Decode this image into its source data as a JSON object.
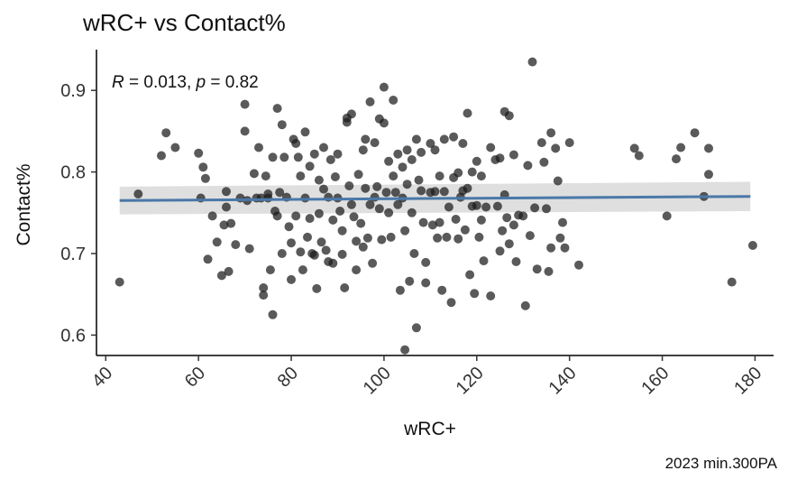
{
  "chart_data": {
    "type": "scatter",
    "title": "wRC+ vs Contact%",
    "xlabel": "wRC+",
    "ylabel": "Contact%",
    "caption": "2023 min.300PA",
    "annotation": {
      "r": "0.013",
      "p": "0.82"
    },
    "xlim": [
      38,
      184
    ],
    "ylim": [
      0.575,
      0.95
    ],
    "x_ticks": [
      40,
      60,
      80,
      100,
      120,
      140,
      160,
      180
    ],
    "y_ticks": [
      0.6,
      0.7,
      0.8,
      0.9
    ],
    "x_tick_labels": [
      "40",
      "60",
      "80",
      "100",
      "120",
      "140",
      "160",
      "180"
    ],
    "y_tick_labels": [
      "0.6",
      "0.7",
      "0.8",
      "0.9"
    ],
    "fit": {
      "x": [
        43,
        179
      ],
      "y": [
        0.765,
        0.77
      ],
      "ci_low": [
        0.748,
        0.752
      ],
      "ci_high": [
        0.782,
        0.788
      ]
    },
    "colors": {
      "points": "#1a1a1a",
      "fit_line": "#4a78a8",
      "ci_band": "#d9d9d9",
      "axis": "#000000"
    },
    "points": [
      [
        43,
        0.665
      ],
      [
        47,
        0.773
      ],
      [
        52,
        0.82
      ],
      [
        53,
        0.848
      ],
      [
        55,
        0.83
      ],
      [
        60,
        0.823
      ],
      [
        60.5,
        0.768
      ],
      [
        61,
        0.806
      ],
      [
        61.5,
        0.792
      ],
      [
        62,
        0.693
      ],
      [
        63,
        0.746
      ],
      [
        64,
        0.714
      ],
      [
        65,
        0.673
      ],
      [
        65.5,
        0.735
      ],
      [
        66,
        0.776
      ],
      [
        66,
        0.757
      ],
      [
        66.5,
        0.678
      ],
      [
        67,
        0.737
      ],
      [
        68,
        0.711
      ],
      [
        69,
        0.768
      ],
      [
        70,
        0.883
      ],
      [
        70,
        0.85
      ],
      [
        70.5,
        0.765
      ],
      [
        71,
        0.706
      ],
      [
        72,
        0.798
      ],
      [
        72.5,
        0.768
      ],
      [
        73,
        0.83
      ],
      [
        73.5,
        0.768
      ],
      [
        74,
        0.658
      ],
      [
        74,
        0.649
      ],
      [
        74.5,
        0.795
      ],
      [
        75,
        0.773
      ],
      [
        75,
        0.768
      ],
      [
        75.5,
        0.68
      ],
      [
        76,
        0.818
      ],
      [
        76,
        0.625
      ],
      [
        76.5,
        0.752
      ],
      [
        77,
        0.746
      ],
      [
        77,
        0.878
      ],
      [
        77.5,
        0.775
      ],
      [
        78,
        0.858
      ],
      [
        78,
        0.7
      ],
      [
        78.5,
        0.818
      ],
      [
        79,
        0.769
      ],
      [
        79.5,
        0.733
      ],
      [
        80,
        0.713
      ],
      [
        80,
        0.668
      ],
      [
        80.5,
        0.84
      ],
      [
        81,
        0.835
      ],
      [
        81,
        0.746
      ],
      [
        81.5,
        0.818
      ],
      [
        82,
        0.795
      ],
      [
        82,
        0.702
      ],
      [
        82.5,
        0.68
      ],
      [
        83,
        0.849
      ],
      [
        83,
        0.768
      ],
      [
        83.5,
        0.72
      ],
      [
        84,
        0.807
      ],
      [
        84,
        0.743
      ],
      [
        84.5,
        0.7
      ],
      [
        85,
        0.822
      ],
      [
        85,
        0.698
      ],
      [
        85.5,
        0.657
      ],
      [
        86,
        0.79
      ],
      [
        86,
        0.749
      ],
      [
        86.5,
        0.714
      ],
      [
        87,
        0.83
      ],
      [
        87,
        0.779
      ],
      [
        87.5,
        0.704
      ],
      [
        88,
        0.769
      ],
      [
        88,
        0.69
      ],
      [
        88.5,
        0.815
      ],
      [
        89,
        0.741
      ],
      [
        89,
        0.688
      ],
      [
        89.5,
        0.794
      ],
      [
        90,
        0.822
      ],
      [
        90,
        0.768
      ],
      [
        90.5,
        0.752
      ],
      [
        91,
        0.728
      ],
      [
        91,
        0.699
      ],
      [
        91.5,
        0.658
      ],
      [
        92,
        0.866
      ],
      [
        92,
        0.861
      ],
      [
        92.5,
        0.783
      ],
      [
        93,
        0.871
      ],
      [
        93,
        0.76
      ],
      [
        93.5,
        0.745
      ],
      [
        94,
        0.715
      ],
      [
        94,
        0.68
      ],
      [
        94.5,
        0.797
      ],
      [
        95,
        0.737
      ],
      [
        95.5,
        0.827
      ],
      [
        95.5,
        0.708
      ],
      [
        96,
        0.84
      ],
      [
        96,
        0.78
      ],
      [
        96.5,
        0.719
      ],
      [
        97,
        0.886
      ],
      [
        97,
        0.76
      ],
      [
        97.5,
        0.688
      ],
      [
        98,
        0.836
      ],
      [
        98,
        0.769
      ],
      [
        98.5,
        0.782
      ],
      [
        99,
        0.865
      ],
      [
        99,
        0.755
      ],
      [
        99.5,
        0.717
      ],
      [
        100,
        0.904
      ],
      [
        100,
        0.86
      ],
      [
        100.5,
        0.775
      ],
      [
        101,
        0.813
      ],
      [
        101,
        0.75
      ],
      [
        101.5,
        0.72
      ],
      [
        102,
        0.888
      ],
      [
        102,
        0.795
      ],
      [
        102.5,
        0.775
      ],
      [
        103,
        0.822
      ],
      [
        103,
        0.76
      ],
      [
        103.5,
        0.655
      ],
      [
        104,
        0.806
      ],
      [
        104,
        0.768
      ],
      [
        104.5,
        0.728
      ],
      [
        104.5,
        0.582
      ],
      [
        105,
        0.827
      ],
      [
        105,
        0.785
      ],
      [
        105.5,
        0.666
      ],
      [
        106,
        0.815
      ],
      [
        106,
        0.75
      ],
      [
        106.5,
        0.7
      ],
      [
        107,
        0.84
      ],
      [
        107,
        0.609
      ],
      [
        107.5,
        0.79
      ],
      [
        108,
        0.824
      ],
      [
        108,
        0.777
      ],
      [
        108.5,
        0.738
      ],
      [
        109,
        0.689
      ],
      [
        109,
        0.664
      ],
      [
        110,
        0.835
      ],
      [
        110,
        0.775
      ],
      [
        110.5,
        0.735
      ],
      [
        111,
        0.827
      ],
      [
        111,
        0.776
      ],
      [
        111.5,
        0.719
      ],
      [
        112,
        0.795
      ],
      [
        112,
        0.738
      ],
      [
        112.5,
        0.655
      ],
      [
        113,
        0.84
      ],
      [
        113,
        0.776
      ],
      [
        113.5,
        0.72
      ],
      [
        114,
        0.757
      ],
      [
        114.5,
        0.64
      ],
      [
        115,
        0.843
      ],
      [
        115,
        0.793
      ],
      [
        115.5,
        0.742
      ],
      [
        116,
        0.799
      ],
      [
        116,
        0.718
      ],
      [
        116.5,
        0.769
      ],
      [
        117,
        0.835
      ],
      [
        117,
        0.777
      ],
      [
        117.5,
        0.729
      ],
      [
        118,
        0.872
      ],
      [
        118,
        0.78
      ],
      [
        118.5,
        0.674
      ],
      [
        119,
        0.8
      ],
      [
        119,
        0.758
      ],
      [
        119.5,
        0.651
      ],
      [
        120,
        0.813
      ],
      [
        120,
        0.759
      ],
      [
        120.5,
        0.72
      ],
      [
        121,
        0.795
      ],
      [
        121,
        0.741
      ],
      [
        121.5,
        0.691
      ],
      [
        122,
        0.757
      ],
      [
        123,
        0.83
      ],
      [
        123,
        0.648
      ],
      [
        124,
        0.815
      ],
      [
        124.5,
        0.758
      ],
      [
        125,
        0.817
      ],
      [
        125,
        0.703
      ],
      [
        125.5,
        0.728
      ],
      [
        126,
        0.874
      ],
      [
        126,
        0.772
      ],
      [
        126.5,
        0.744
      ],
      [
        127,
        0.869
      ],
      [
        127,
        0.712
      ],
      [
        128,
        0.821
      ],
      [
        128,
        0.735
      ],
      [
        128.5,
        0.69
      ],
      [
        129,
        0.747
      ],
      [
        130,
        0.746
      ],
      [
        130.5,
        0.636
      ],
      [
        131,
        0.808
      ],
      [
        131.5,
        0.722
      ],
      [
        132,
        0.935
      ],
      [
        132.5,
        0.756
      ],
      [
        133,
        0.681
      ],
      [
        134,
        0.836
      ],
      [
        134.5,
        0.812
      ],
      [
        135,
        0.755
      ],
      [
        135.5,
        0.678
      ],
      [
        136,
        0.848
      ],
      [
        136,
        0.707
      ],
      [
        137,
        0.829
      ],
      [
        137.5,
        0.789
      ],
      [
        138,
        0.719
      ],
      [
        138.5,
        0.738
      ],
      [
        139,
        0.707
      ],
      [
        140,
        0.836
      ],
      [
        142,
        0.686
      ],
      [
        154,
        0.829
      ],
      [
        155,
        0.82
      ],
      [
        161,
        0.746
      ],
      [
        163,
        0.816
      ],
      [
        164,
        0.83
      ],
      [
        167,
        0.848
      ],
      [
        169,
        0.77
      ],
      [
        170,
        0.829
      ],
      [
        170,
        0.797
      ],
      [
        175,
        0.665
      ],
      [
        179.5,
        0.71
      ]
    ]
  }
}
